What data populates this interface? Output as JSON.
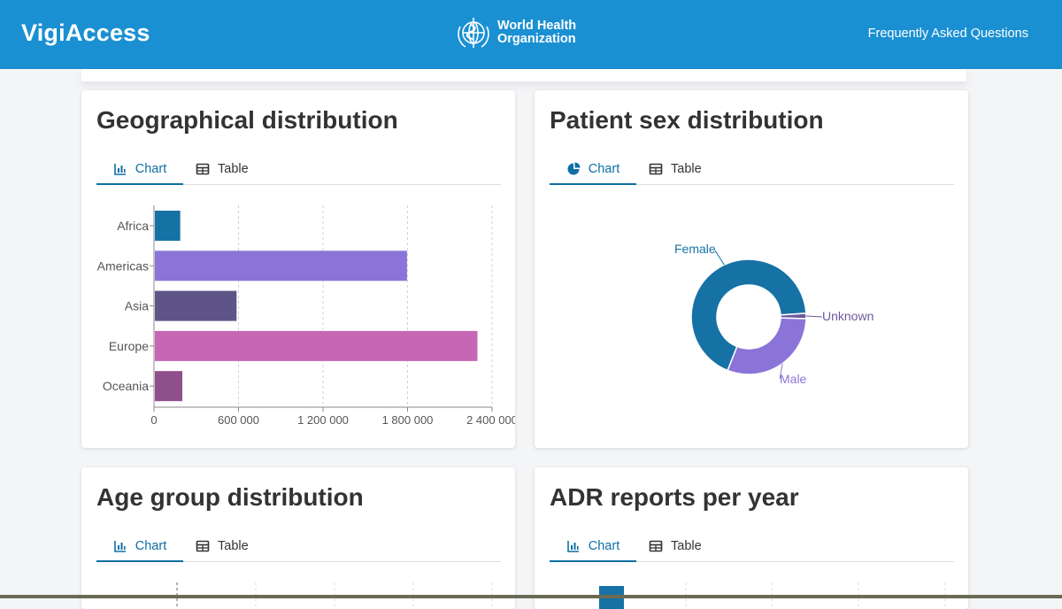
{
  "header": {
    "brand": "VigiAccess",
    "org_line1": "World Health",
    "org_line2": "Organization",
    "faq_link": "Frequently Asked Questions"
  },
  "cards": {
    "geo": {
      "title": "Geographical distribution",
      "tab_chart": "Chart",
      "tab_table": "Table"
    },
    "sex": {
      "title": "Patient sex distribution",
      "tab_chart": "Chart",
      "tab_table": "Table"
    },
    "age": {
      "title": "Age group distribution",
      "tab_chart": "Chart",
      "tab_table": "Table"
    },
    "adr": {
      "title": "ADR reports per year",
      "tab_chart": "Chart",
      "tab_table": "Table"
    }
  },
  "colors": {
    "header_bg": "#1a90d2",
    "accent": "#0e6fa3",
    "africa": "#1672a5",
    "americas": "#8a74d8",
    "asia": "#5f5487",
    "europe": "#c766b4",
    "oceania": "#8e4f8a",
    "female": "#1672a5",
    "male": "#8a74d8",
    "unknown": "#6c5a9c"
  },
  "chart_data": [
    {
      "type": "bar",
      "orientation": "horizontal",
      "categories": [
        "Africa",
        "Americas",
        "Asia",
        "Europe",
        "Oceania"
      ],
      "values": [
        180000,
        1790000,
        580000,
        2290000,
        195000
      ],
      "x_ticks": [
        0,
        600000,
        1200000,
        1800000,
        2400000
      ],
      "x_tick_labels": [
        "0",
        "600 000",
        "1 200 000",
        "1 800 000",
        "2 400 000"
      ],
      "xlim": [
        0,
        2400000
      ],
      "grid": "vertical dashed"
    },
    {
      "type": "pie",
      "donut": true,
      "labels": [
        "Female",
        "Male",
        "Unknown"
      ],
      "values": [
        68,
        30.5,
        1.5
      ]
    }
  ]
}
